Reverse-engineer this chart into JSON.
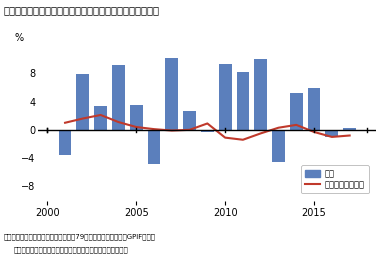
{
  "title": "図表２　実質的な運用利回りの実績と将来見通しでの前提",
  "years": [
    2001,
    2002,
    2003,
    2004,
    2005,
    2006,
    2007,
    2008,
    2009,
    2010,
    2011,
    2012,
    2013,
    2014,
    2015,
    2016,
    2017
  ],
  "bar_values": [
    -3.5,
    7.9,
    3.3,
    9.2,
    3.5,
    -4.8,
    10.2,
    2.7,
    -0.3,
    9.3,
    8.2,
    10.0,
    -4.5,
    5.2,
    5.9,
    -1.0,
    0.3
  ],
  "line_x": [
    2001,
    2002,
    2003,
    2004,
    2005,
    2006,
    2007,
    2008,
    2009,
    2010,
    2011,
    2012,
    2013,
    2014,
    2015,
    2016,
    2017
  ],
  "line_values": [
    1.0,
    1.6,
    2.1,
    1.1,
    0.4,
    0.1,
    -0.1,
    0.0,
    0.9,
    -1.1,
    -1.4,
    -0.5,
    0.3,
    0.7,
    -0.3,
    -1.0,
    -0.8
  ],
  "bar_color": "#5b7fbc",
  "line_color": "#c0392b",
  "ylabel": "%",
  "ylim": [
    -10,
    12
  ],
  "yticks": [
    -8,
    -4,
    0,
    4,
    8
  ],
  "xlim": [
    1999.5,
    2018.5
  ],
  "xticks": [
    2000,
    2005,
    2010,
    2015
  ],
  "legend_label_bar": "実績",
  "legend_label_line": "将来見通しの前提",
  "footnote_line1": "資料：厚生労働省「厚生年金保险法笩79条の８第２項に基づくGPIFにかか",
  "footnote_line2": "る管理積立金の管理及び運用の状況についての評価の結果」",
  "background_color": "#ffffff"
}
